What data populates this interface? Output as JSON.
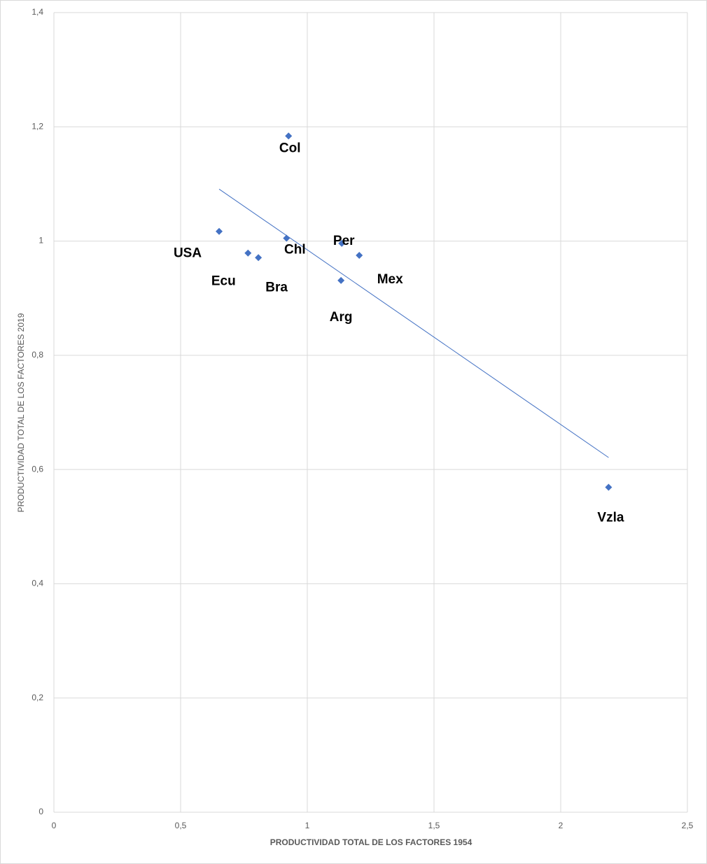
{
  "chart_data": {
    "type": "scatter",
    "x_label": "PRODUCTIVIDAD TOTAL DE LOS FACTORES 1954",
    "y_label": "PRODUCTIVIDAD TOTAL DE LOS FACTORES 2019",
    "series": [
      {
        "color": "#4472c4",
        "labels": [
          "USA",
          "Ecu",
          "Bra",
          "Chl",
          "Col",
          "Per",
          "Arg",
          "Mex",
          "Vzla"
        ],
        "x": [
          0.652,
          0.766,
          0.807,
          0.918,
          0.926,
          1.136,
          1.133,
          1.205,
          2.189
        ],
        "values": [
          1.017,
          0.979,
          0.971,
          1.005,
          1.184,
          0.996,
          0.931,
          0.975,
          0.569
        ]
      }
    ],
    "trendline": {
      "color": "#4472c4",
      "x": [
        0.652,
        2.189
      ],
      "values": [
        1.091,
        0.621
      ]
    },
    "xlim": [
      0,
      2.5
    ],
    "xticks": [
      0,
      {
        "value": 0.5,
        "label": "0,5"
      },
      1,
      {
        "value": 1.5,
        "label": "1,5"
      },
      2,
      {
        "value": 2.5,
        "label": "2,5"
      }
    ],
    "ylim": [
      0,
      1.4
    ],
    "yticks": [
      0,
      {
        "value": 0.2,
        "label": "0,2"
      },
      {
        "value": 0.4,
        "label": "0,4"
      },
      {
        "value": 0.6,
        "label": "0,6"
      },
      {
        "value": 0.8,
        "label": "0,8"
      },
      1,
      {
        "value": 1.2,
        "label": "1,2"
      },
      {
        "value": 1.4,
        "label": "1,4"
      }
    ],
    "grid": true
  }
}
